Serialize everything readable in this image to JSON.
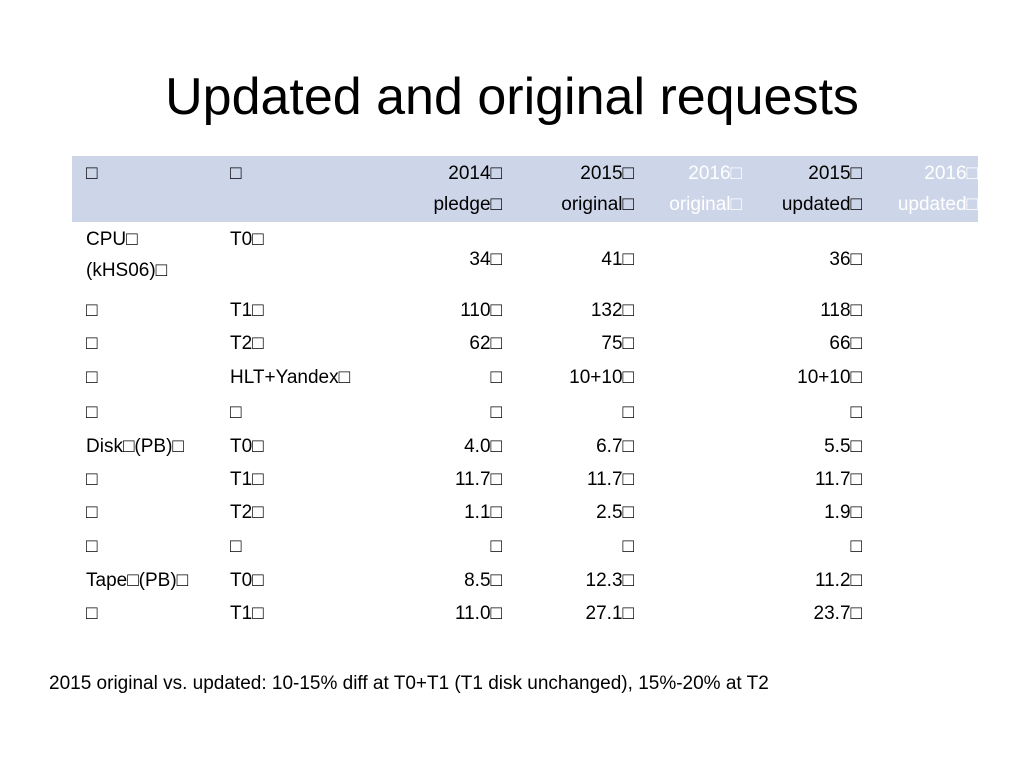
{
  "slide": {
    "title": "Updated and original requests",
    "note": "2015 original vs. updated: 10-15% diff at T0+T1 (T1 disk unchanged), 15%-20% at T2"
  },
  "colors": {
    "header_band": "#cdd5e8",
    "faded_header_text": "#ffffff"
  },
  "table": {
    "headers": [
      "□",
      "□",
      "2014□\npledge□",
      "2015□\noriginal□",
      "2016□\noriginal□",
      "2015□\nupdated□",
      "2016□\nupdated□"
    ],
    "rows": [
      [
        "CPU□\n(kHS06)□",
        "T0□",
        "34□",
        "41□",
        "",
        "36□",
        ""
      ],
      [
        "□",
        "T1□",
        "110□",
        "132□",
        "",
        "118□",
        ""
      ],
      [
        "□",
        "T2□",
        "62□",
        "75□",
        "",
        "66□",
        ""
      ],
      [
        "□",
        "HLT+Yandex□",
        "□",
        "10+10□",
        "",
        "10+10□",
        ""
      ],
      [
        "□",
        "□",
        "□",
        "□",
        "",
        "□",
        ""
      ],
      [
        "Disk□(PB)□",
        "T0□",
        "4.0□",
        "6.7□",
        "",
        "5.5□",
        ""
      ],
      [
        "□",
        "T1□",
        "11.7□",
        "11.7□",
        "",
        "11.7□",
        ""
      ],
      [
        "□",
        "T2□",
        "1.1□",
        "2.5□",
        "",
        "1.9□",
        ""
      ],
      [
        "□",
        "□",
        "□",
        "□",
        "",
        "□",
        ""
      ],
      [
        "Tape□(PB)□",
        "T0□",
        "8.5□",
        "12.3□",
        "",
        "11.2□",
        ""
      ],
      [
        "□",
        "T1□",
        "11.0□",
        "27.1□",
        "",
        "23.7□",
        ""
      ]
    ]
  }
}
